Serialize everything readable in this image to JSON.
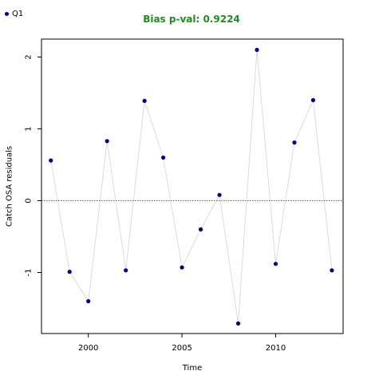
{
  "chart_data": {
    "type": "line",
    "title": "Bias p-val: 0.9224",
    "title_color": "#228b22",
    "xlabel": "Time",
    "ylabel": "Catch OSA residuals",
    "xlim": [
      1997.5,
      2013.6
    ],
    "ylim": [
      -1.85,
      2.25
    ],
    "xticks": [
      2000,
      2005,
      2010
    ],
    "yticks": [
      -1,
      0,
      1,
      2
    ],
    "reference_line": 0,
    "point_color": "#00008b",
    "line_color": "#d3d3d3",
    "series": [
      {
        "name": "Q1",
        "x": [
          1998,
          1999,
          2000,
          2001,
          2002,
          2003,
          2004,
          2005,
          2006,
          2007,
          2008,
          2009,
          2010,
          2011,
          2012,
          2013
        ],
        "values": [
          0.56,
          -0.99,
          -1.4,
          0.83,
          -0.97,
          1.39,
          0.6,
          -0.93,
          -0.4,
          0.08,
          -1.71,
          2.1,
          -0.88,
          0.81,
          1.4,
          -0.97
        ]
      }
    ]
  }
}
